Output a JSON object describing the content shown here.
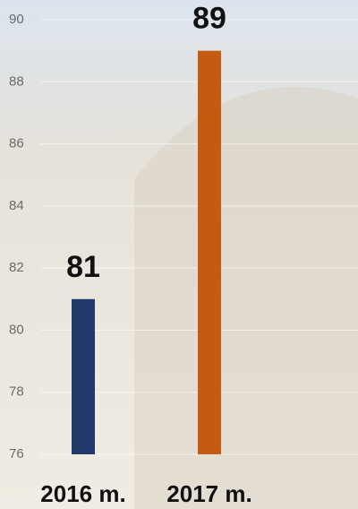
{
  "chart_data": {
    "type": "bar",
    "categories": [
      "2016 m.",
      "2017 m."
    ],
    "values": [
      81,
      89
    ],
    "colors": [
      "#213a6b",
      "#c55a11"
    ],
    "ylim": [
      76,
      90
    ],
    "yticks": [
      76,
      78,
      80,
      82,
      84,
      86,
      88,
      90
    ],
    "grid": true
  }
}
